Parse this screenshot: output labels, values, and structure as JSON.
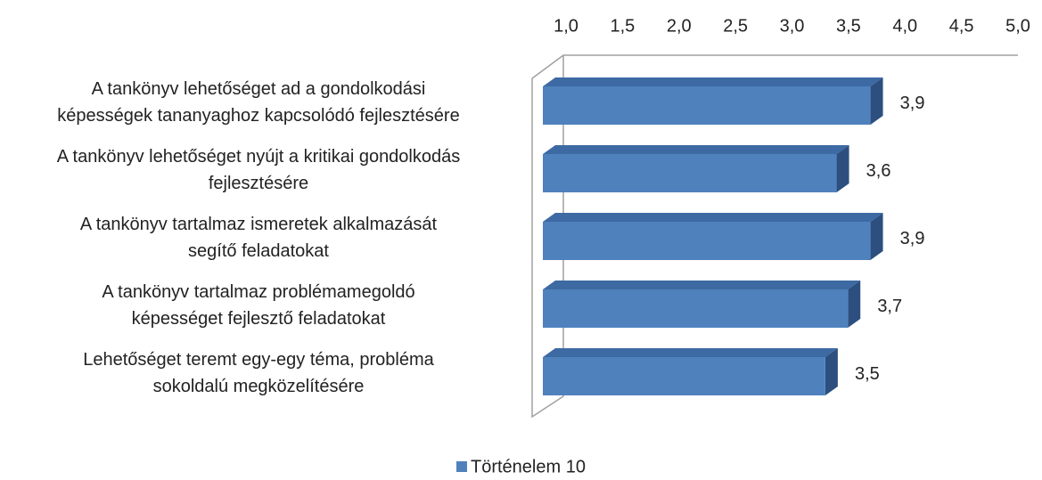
{
  "chart_data": {
    "type": "bar3d_horizontal",
    "categories": [
      "A tankönyv lehetőséget ad a gondolkodási\nképességek tananyaghoz kapcsolódó fejlesztésére",
      "A tankönyv lehetőséget nyújt a kritikai gondolkodás\nfejlesztésére",
      "A tankönyv tartalmaz ismeretek alkalmazását\nsegítő feladatokat",
      "A tankönyv tartalmaz problémamegoldó\nképességet fejlesztő feladatokat",
      "Lehetőséget teremt egy-egy téma, probléma\nsokoldalú megközelítésére"
    ],
    "series": [
      {
        "name": "Történelem 10",
        "color": "#4f81bd",
        "values": [
          3.9,
          3.6,
          3.9,
          3.7,
          3.5
        ],
        "value_labels": [
          "3,9",
          "3,6",
          "3,9",
          "3,7",
          "3,5"
        ]
      }
    ],
    "xlim": [
      1,
      5
    ],
    "xticks": [
      {
        "value": 1,
        "label": "1,0"
      },
      {
        "value": 1.5,
        "label": "1,5"
      },
      {
        "value": 2,
        "label": "2,0"
      },
      {
        "value": 2.5,
        "label": "2,5"
      },
      {
        "value": 3,
        "label": "3,0"
      },
      {
        "value": 3.5,
        "label": "3,5"
      },
      {
        "value": 4,
        "label": "4,0"
      },
      {
        "value": 4.5,
        "label": "4,5"
      },
      {
        "value": 5,
        "label": "5,0"
      }
    ],
    "legend": "bottom"
  }
}
